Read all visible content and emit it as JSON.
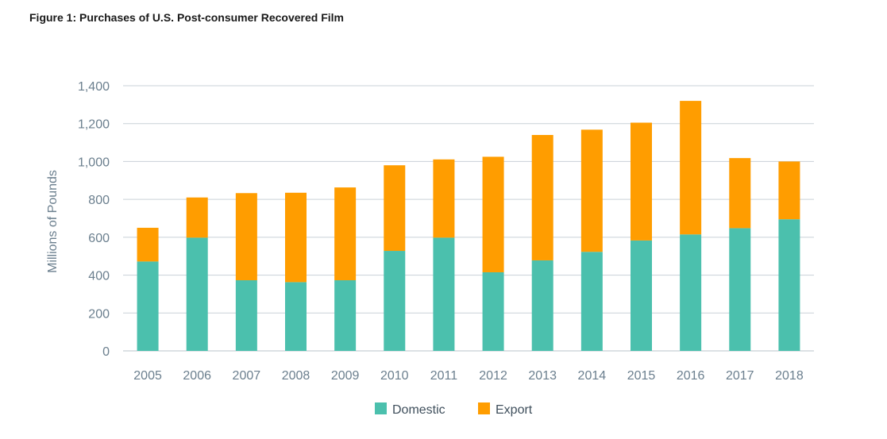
{
  "chart_data": {
    "type": "bar",
    "stacked": true,
    "title": "Figure 1: Purchases of U.S. Post-consumer Recovered Film",
    "xlabel": "",
    "ylabel": "Millions of Pounds",
    "ylim": [
      0,
      1400
    ],
    "yticks": [
      0,
      200,
      400,
      600,
      800,
      1000,
      1200,
      1400
    ],
    "ytick_labels": [
      "0",
      "200",
      "400",
      "600",
      "800",
      "1,000",
      "1,200",
      "1,400"
    ],
    "grid": true,
    "legend_position": "bottom",
    "categories": [
      "2005",
      "2006",
      "2007",
      "2008",
      "2009",
      "2010",
      "2011",
      "2012",
      "2013",
      "2014",
      "2015",
      "2016",
      "2017",
      "2018"
    ],
    "series": [
      {
        "name": "Domestic",
        "color": "#4bc0ad",
        "values": [
          472,
          598,
          373,
          363,
          373,
          528,
          598,
          415,
          478,
          523,
          583,
          615,
          648,
          695
        ]
      },
      {
        "name": "Export",
        "color": "#ff9d00",
        "values": [
          178,
          212,
          460,
          472,
          490,
          452,
          413,
          610,
          662,
          645,
          622,
          705,
          370,
          305
        ]
      }
    ]
  }
}
